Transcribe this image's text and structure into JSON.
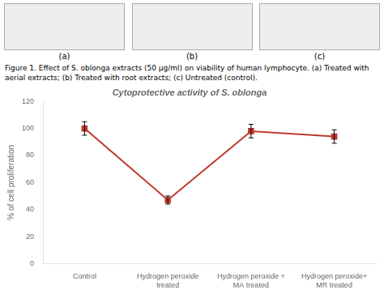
{
  "chart_data": {
    "type": "line",
    "title": "Cytoprotective activity of S. oblonga",
    "subtitle": "Figure 1. Effect of S. oblonga extracts (50 μg/ml) on viability of human lymphocyte. (a) Treated with aerial extracts; (b) Treated with root extracts; (c) Untreated (control).",
    "annotations": [
      "(a)",
      "(b)",
      "(c)"
    ],
    "ylabel": "% of cell proliferation",
    "categories": [
      "Control",
      "Hydrogen peroxide\ntreated",
      "Hydrogen peroxide +\nMA treated",
      "Hydrogen peroxide+\nMR treated"
    ],
    "values": [
      100,
      47,
      98,
      94
    ],
    "errors": [
      5,
      3,
      5,
      5
    ],
    "color": "#c0392b",
    "marker": "square",
    "ylim": [
      0,
      120
    ],
    "yticks": [
      0,
      20,
      40,
      60,
      80,
      100,
      120
    ],
    "grid": false
  }
}
